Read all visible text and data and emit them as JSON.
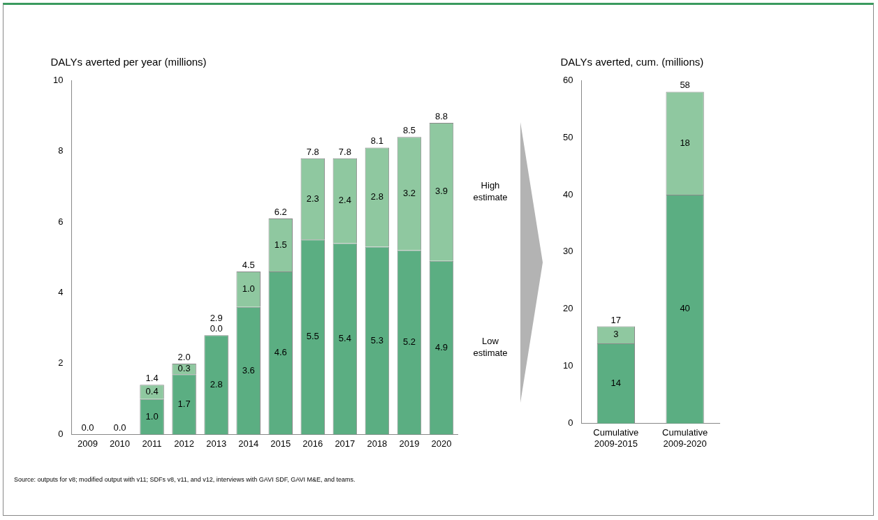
{
  "chart_data": [
    {
      "type": "bar",
      "stacked": true,
      "title": "DALYs averted per year (millions)",
      "categories": [
        "2009",
        "2010",
        "2011",
        "2012",
        "2013",
        "2014",
        "2015",
        "2016",
        "2017",
        "2018",
        "2019",
        "2020"
      ],
      "series": [
        {
          "name": "Low estimate",
          "color": "#5bae82",
          "values": [
            0,
            0,
            1.0,
            1.7,
            2.8,
            3.6,
            4.6,
            5.5,
            5.4,
            5.3,
            5.2,
            4.9
          ],
          "value_labels": [
            null,
            null,
            "1.0",
            "1.7",
            "2.8",
            "3.6",
            "4.6",
            "5.5",
            "5.4",
            "5.3",
            "5.2",
            "4.9"
          ]
        },
        {
          "name": "High estimate",
          "color": "#8fc8a0",
          "values": [
            0,
            0,
            0.4,
            0.3,
            0.0,
            1.0,
            1.5,
            2.3,
            2.4,
            2.8,
            3.2,
            3.9
          ],
          "value_labels": [
            null,
            null,
            "0.4",
            "0.3",
            "0.0",
            "1.0",
            "1.5",
            "2.3",
            "2.4",
            "2.8",
            "3.2",
            "3.9"
          ]
        }
      ],
      "totals": [
        "0.0",
        "0.0",
        "1.4",
        "2.0",
        "2.9",
        "4.5",
        "6.2",
        "7.8",
        "7.8",
        "8.1",
        "8.5",
        "8.8"
      ],
      "ylim": [
        0,
        10
      ],
      "yticks": [
        0,
        2,
        4,
        6,
        8,
        10
      ],
      "grid": false,
      "legend": false,
      "annotations": [
        "Source: outputs for v8; modified output with v11; SDFs v8, v11, and v12, interviews with GAVI SDF,  GAVI M&E, and teams."
      ]
    },
    {
      "type": "bar",
      "stacked": true,
      "title": "DALYs averted, cum. (millions)",
      "categories": [
        "Cumulative 2009-2015",
        "Cumulative 2009-2020"
      ],
      "series": [
        {
          "color": "#5bae82",
          "values": [
            14,
            40
          ]
        },
        {
          "color": "#8fc8a0",
          "values": [
            3,
            18
          ]
        }
      ],
      "totals": [
        "17",
        "58"
      ],
      "data_labels": true,
      "ylim": [
        0,
        60
      ],
      "yticks": [
        0,
        10,
        20,
        30,
        40,
        50,
        60
      ],
      "grid": false,
      "legend": false
    }
  ]
}
